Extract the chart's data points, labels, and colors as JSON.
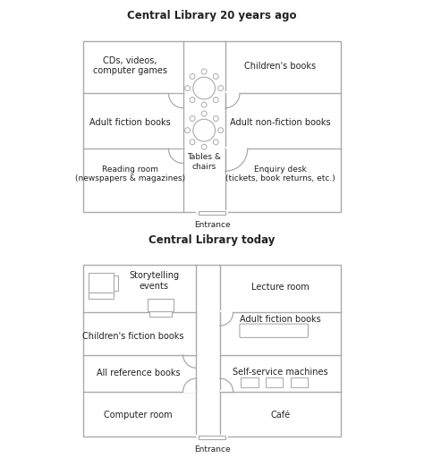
{
  "title1": "Central Library 20 years ago",
  "title2": "Central Library today",
  "entrance_label": "Entrance",
  "bg_color": "#ffffff",
  "border_color": "#aaaaaa",
  "text_color": "#222222",
  "title_fontsize": 8.5,
  "room_fontsize": 7.0,
  "small_fontsize": 6.5,
  "figsize": [
    4.74,
    5.12
  ],
  "dpi": 100
}
